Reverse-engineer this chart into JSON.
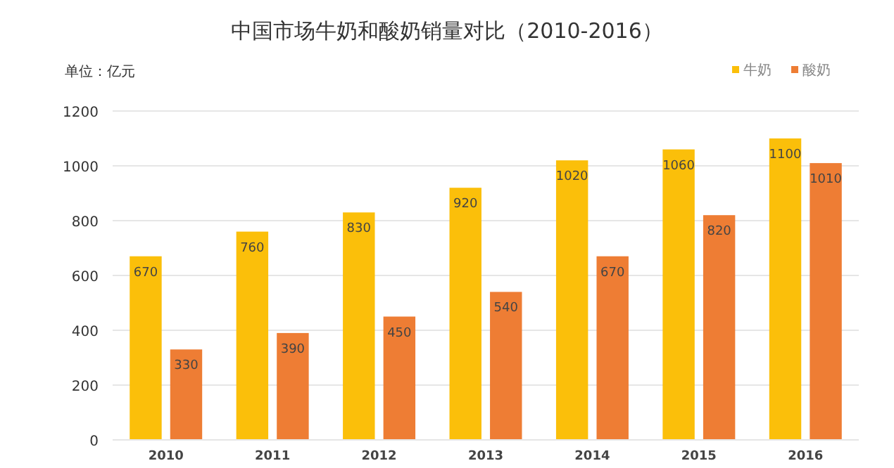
{
  "chart_data": {
    "type": "bar",
    "title": "中国市场牛奶和酸奶销量对比（2010-2016）",
    "ylabel": "单位：亿元",
    "categories": [
      "2010",
      "2011",
      "2012",
      "2013",
      "2014",
      "2015",
      "2016"
    ],
    "series": [
      {
        "name": "牛奶",
        "color": "#fbbf0a",
        "values": [
          670,
          760,
          830,
          920,
          1020,
          1060,
          1100
        ]
      },
      {
        "name": "酸奶",
        "color": "#ee7d34",
        "values": [
          330,
          390,
          450,
          540,
          670,
          820,
          1010
        ]
      }
    ],
    "ylim": [
      0,
      1200
    ],
    "yticks": [
      0,
      200,
      400,
      600,
      800,
      1000,
      1200
    ],
    "grid": "y",
    "legend": "top right",
    "data_labels": true
  }
}
